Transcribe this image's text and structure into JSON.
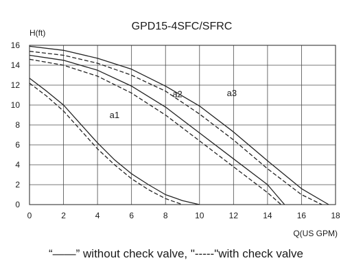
{
  "chart_data": {
    "type": "line",
    "title": "GPD15-4SFC/SFRC",
    "xlabel": "Q(US GPM)",
    "ylabel": "H(ft)",
    "xlim": [
      0,
      18
    ],
    "ylim": [
      0,
      16
    ],
    "xticks": [
      0,
      2,
      4,
      6,
      8,
      10,
      12,
      14,
      16,
      18
    ],
    "yticks": [
      0,
      2,
      4,
      6,
      8,
      10,
      12,
      14,
      16
    ],
    "grid": true,
    "legend_note": "“——” without check valve, \"-----\"with check valve",
    "curve_labels": [
      {
        "text": "a1",
        "x": 5.0,
        "y": 8.7
      },
      {
        "text": "a2",
        "x": 8.7,
        "y": 10.8
      },
      {
        "text": "a3",
        "x": 11.9,
        "y": 10.9
      }
    ],
    "series": [
      {
        "curve": "a1",
        "style": "solid",
        "points": [
          [
            0,
            12.7
          ],
          [
            1,
            11.4
          ],
          [
            2,
            10.0
          ],
          [
            3,
            8.1
          ],
          [
            4,
            6.2
          ],
          [
            5,
            4.5
          ],
          [
            6,
            3.1
          ],
          [
            7,
            2.0
          ],
          [
            8,
            1.0
          ],
          [
            9,
            0.4
          ],
          [
            10,
            0
          ]
        ]
      },
      {
        "curve": "a1",
        "style": "dashed",
        "points": [
          [
            0,
            12.2
          ],
          [
            1,
            10.9
          ],
          [
            2,
            9.4
          ],
          [
            3,
            7.5
          ],
          [
            4,
            5.6
          ],
          [
            5,
            4.0
          ],
          [
            6,
            2.6
          ],
          [
            7,
            1.5
          ],
          [
            8,
            0.6
          ],
          [
            9,
            0
          ]
        ]
      },
      {
        "curve": "a2",
        "style": "solid",
        "points": [
          [
            0,
            15.0
          ],
          [
            2,
            14.5
          ],
          [
            4,
            13.5
          ],
          [
            6,
            11.9
          ],
          [
            8,
            9.8
          ],
          [
            10,
            7.2
          ],
          [
            12,
            4.6
          ],
          [
            14,
            2.0
          ],
          [
            15,
            0
          ]
        ]
      },
      {
        "curve": "a2",
        "style": "dashed",
        "points": [
          [
            0,
            14.6
          ],
          [
            2,
            14.0
          ],
          [
            4,
            12.9
          ],
          [
            6,
            11.2
          ],
          [
            8,
            9.0
          ],
          [
            10,
            6.4
          ],
          [
            12,
            3.8
          ],
          [
            14,
            1.2
          ],
          [
            14.8,
            0
          ]
        ]
      },
      {
        "curve": "a3",
        "style": "solid",
        "points": [
          [
            0,
            15.9
          ],
          [
            2,
            15.5
          ],
          [
            4,
            14.7
          ],
          [
            6,
            13.6
          ],
          [
            8,
            11.9
          ],
          [
            10,
            9.9
          ],
          [
            12,
            7.3
          ],
          [
            14,
            4.4
          ],
          [
            16,
            1.6
          ],
          [
            17.6,
            0
          ]
        ]
      },
      {
        "curve": "a3",
        "style": "dashed",
        "points": [
          [
            0,
            15.4
          ],
          [
            2,
            15.0
          ],
          [
            4,
            14.2
          ],
          [
            6,
            13.0
          ],
          [
            8,
            11.4
          ],
          [
            10,
            9.1
          ],
          [
            12,
            6.5
          ],
          [
            14,
            3.6
          ],
          [
            16,
            1.0
          ],
          [
            17.2,
            0
          ]
        ]
      }
    ]
  }
}
